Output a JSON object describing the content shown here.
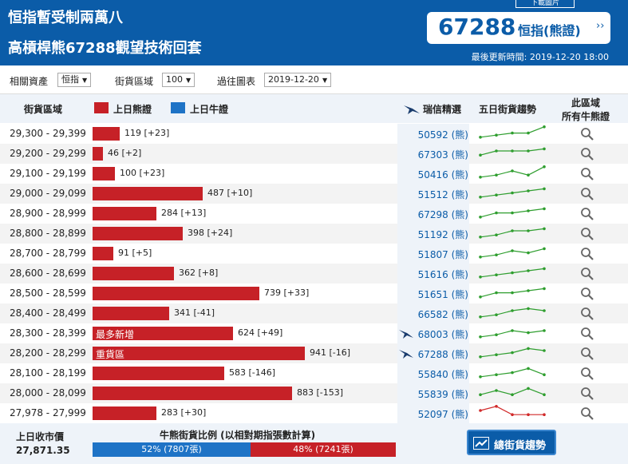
{
  "header": {
    "title_line1": "恒指暫受制兩萬八",
    "title_line2": "高槓桿熊67288觀望技術回套",
    "top_button": "下載圖片",
    "price_code": "67288",
    "price_label": "恒指(熊證)",
    "price_arrow": "››",
    "updated_text": "最後更新時間: 2019-12-20 18:00"
  },
  "filters": {
    "asset_label": "相關資產",
    "asset_value": "恒指",
    "zone_label": "街貨區域",
    "zone_value": "100",
    "history_label": "過往圖表",
    "history_value": "2019-12-20",
    "dropdown_glyph": "▼"
  },
  "table_header": {
    "zone": "街貨區域",
    "bear_legend": "上日熊證",
    "bull_legend": "上日牛證",
    "ubs": "瑞信精選",
    "trend": "五日街貨趨勢",
    "all_line1": "此區域",
    "all_line2": "所有牛熊證"
  },
  "colors": {
    "bear": "#c62127",
    "bull": "#1e73c6",
    "brand": "#0b5ca8",
    "spark_up": "#2f9e2f",
    "spark_down": "#d12a2a"
  },
  "rows": [
    {
      "range": "29,300 - 29,399",
      "value": 119,
      "change": "[+23]",
      "code": "50592 (熊)",
      "ubs": false,
      "tag": "",
      "trend": [
        2,
        3,
        4,
        4,
        7
      ],
      "down": false
    },
    {
      "range": "29,200 - 29,299",
      "value": 46,
      "change": "[+2]",
      "code": "67303 (熊)",
      "ubs": false,
      "tag": "",
      "trend": [
        3,
        5,
        5,
        5,
        6
      ],
      "down": false
    },
    {
      "range": "29,100 - 29,199",
      "value": 100,
      "change": "[+23]",
      "code": "50416 (熊)",
      "ubs": false,
      "tag": "",
      "trend": [
        2,
        3,
        5,
        3,
        7
      ],
      "down": false
    },
    {
      "range": "29,000 - 29,099",
      "value": 487,
      "change": "[+10]",
      "code": "51512 (熊)",
      "ubs": false,
      "tag": "",
      "trend": [
        2,
        3,
        4,
        5,
        6
      ],
      "down": false
    },
    {
      "range": "28,900 - 28,999",
      "value": 284,
      "change": "[+13]",
      "code": "67298 (熊)",
      "ubs": false,
      "tag": "",
      "trend": [
        2,
        4,
        4,
        5,
        6
      ],
      "down": false
    },
    {
      "range": "28,800 - 28,899",
      "value": 398,
      "change": "[+24]",
      "code": "51192 (熊)",
      "ubs": false,
      "tag": "",
      "trend": [
        2,
        3,
        5,
        5,
        6
      ],
      "down": false
    },
    {
      "range": "28,700 - 28,799",
      "value": 91,
      "change": "[+5]",
      "code": "51807 (熊)",
      "ubs": false,
      "tag": "",
      "trend": [
        2,
        3,
        5,
        4,
        6
      ],
      "down": false
    },
    {
      "range": "28,600 - 28,699",
      "value": 362,
      "change": "[+8]",
      "code": "51616 (熊)",
      "ubs": false,
      "tag": "",
      "trend": [
        2,
        3,
        4,
        5,
        6
      ],
      "down": false
    },
    {
      "range": "28,500 - 28,599",
      "value": 739,
      "change": "[+33]",
      "code": "51651 (熊)",
      "ubs": false,
      "tag": "",
      "trend": [
        2,
        4,
        4,
        5,
        6
      ],
      "down": false
    },
    {
      "range": "28,400 - 28,499",
      "value": 341,
      "change": "[-41]",
      "code": "66582 (熊)",
      "ubs": false,
      "tag": "",
      "trend": [
        2,
        3,
        5,
        6,
        5
      ],
      "down": false
    },
    {
      "range": "28,300 - 28,399",
      "value": 624,
      "change": "[+49]",
      "code": "68003 (熊)",
      "ubs": true,
      "tag": "最多新增",
      "trend": [
        2,
        3,
        5,
        4,
        5
      ],
      "down": false
    },
    {
      "range": "28,200 - 28,299",
      "value": 941,
      "change": "[-16]",
      "code": "67288 (熊)",
      "ubs": true,
      "tag": "重貨區",
      "trend": [
        2,
        3,
        4,
        6,
        5
      ],
      "down": false
    },
    {
      "range": "28,100 - 28,199",
      "value": 583,
      "change": "[-146]",
      "code": "55840 (熊)",
      "ubs": false,
      "tag": "",
      "trend": [
        2,
        3,
        4,
        6,
        3
      ],
      "down": false
    },
    {
      "range": "28,000 - 28,099",
      "value": 883,
      "change": "[-153]",
      "code": "55839 (熊)",
      "ubs": false,
      "tag": "",
      "trend": [
        3,
        5,
        3,
        6,
        3
      ],
      "down": false
    },
    {
      "range": "27,978 - 27,999",
      "value": 283,
      "change": "[+30]",
      "code": "52097 (熊)",
      "ubs": false,
      "tag": "",
      "trend": [
        5,
        7,
        3,
        3,
        3
      ],
      "down": true
    }
  ],
  "footer": {
    "close_label": "上日收市價",
    "close_value": "27,871.35",
    "ratio_title": "牛熊街貨比例 (以相對期指張數計算)",
    "bull_ratio": 52,
    "bull_text": "52% (7807張)",
    "bear_text": "48% (7241張)",
    "trend_button": "總街貨趨勢"
  }
}
